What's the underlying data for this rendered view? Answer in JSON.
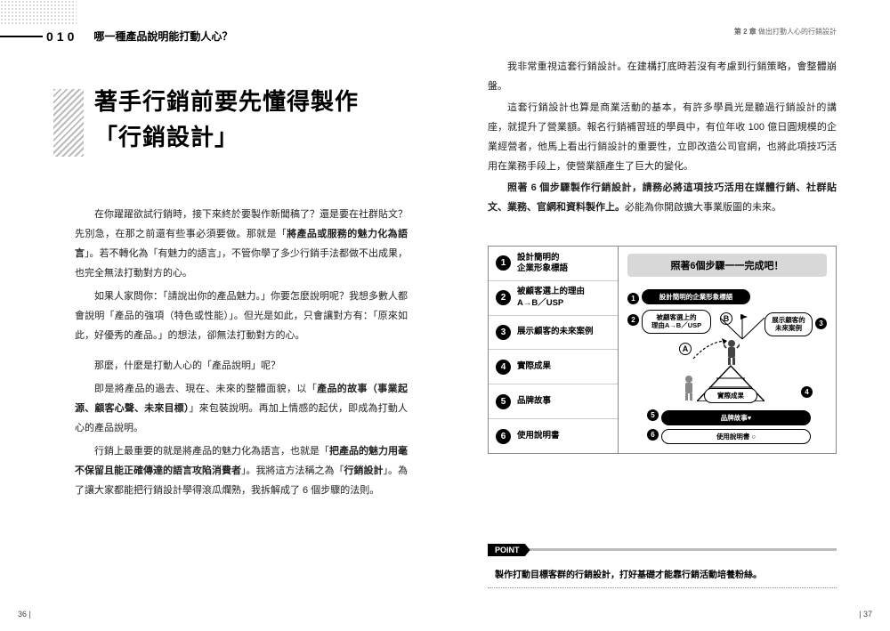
{
  "left": {
    "section_no": "010",
    "section_q": "哪一種產品說明能打動人心？",
    "title_line1": "著手行銷前要先懂得製作",
    "title_line2": "「行銷設計」",
    "p1": "在你躍躍欲試行銷時，接下來終於要製作新聞稿了？還是要在社群貼文？先別急，在那之前還有些事必須要做。那就是「<b>將產品或服務的魅力化為語言</b>」。若不轉化為「有魅力的語言」，不管你學了多少行銷手法都做不出成果，也完全無法打動對方的心。",
    "p2": "如果人家問你：「請說出你的產品魅力。」你要怎麼說明呢？我想多數人都會說明「產品的強項（特色或性能）」。但光是如此，只會讓對方有：「原來如此，好優秀的產品。」的想法，卻無法打動對方的心。",
    "p3": "那麼，什麼是打動人心的「產品說明」呢？",
    "p4": "即是將產品的過去、現在、未來的整體面貌，以「<b>產品的故事（事業起源、顧客心聲、未來目標）</b>」來包裝說明。再加上情感的起伏，即成為打動人心的產品說明。",
    "p5": "行銷上最重要的就是將產品的魅力化為語言，也就是「<b>把產品的魅力用毫不保留且能正確傳達的語言攻陷消費者</b>」。我將這方法稱之為「<b>行銷設計</b>」。為了讓大家都能把行銷設計學得滾瓜爛熟，我拆解成了 6 個步驟的法則。",
    "page_no": "36"
  },
  "right": {
    "chapter": "第 2 章",
    "chapter_title": "做出打動人心的行銷設計",
    "p1": "我非常重視這套行銷設計。在建構打底時若沒有考慮到行銷策略，會整體崩盤。",
    "p2": "這套行銷設計也算是商業活動的基本，有許多學員光是聽過行銷設計的講座，就提升了營業額。報名行銷補習班的學員中，有位年收 100 億日圓規模的企業經營者，他馬上看出行銷設計的重要性，立即改造公司官網，也將此項技巧活用在業務手段上，使營業額產生了巨大的變化。",
    "p3": "<b>照著 6 個步驟製作行銷設計，請務必將這項技巧活用在媒體行銷、社群貼文、業務、官網和資料製作上。</b>必能為你開啟擴大事業版圖的未來。",
    "steps": [
      {
        "n": "1",
        "label_l1": "設計簡明的",
        "label_l2": "企業形象標語"
      },
      {
        "n": "2",
        "label_l1": "被顧客選上的理由",
        "label_l2": "A→B／USP"
      },
      {
        "n": "3",
        "label_l1": "展示顧客的未來案例",
        "label_l2": ""
      },
      {
        "n": "4",
        "label_l1": "實際成果",
        "label_l2": ""
      },
      {
        "n": "5",
        "label_l1": "品牌故事",
        "label_l2": ""
      },
      {
        "n": "6",
        "label_l1": "使用說明書",
        "label_l2": ""
      }
    ],
    "diag_title": "照著6個步驟一一完成吧！",
    "bubble1": "設計簡明的企業形象標語",
    "bubble2_l1": "被顧客選上的",
    "bubble2_l2": "理由A→B／USP",
    "bubble3_l1": "展示顧客的",
    "bubble3_l2": "未來案例",
    "bubble4": "實際成果",
    "bubble5": "品牌故事♥",
    "bubble6": "使用說明書 ○",
    "point_label": "POINT",
    "point_text": "製作打動目標客群的行銷設計，打好基礎才能靠行銷活動培養粉絲。",
    "page_no": "37"
  },
  "colors": {
    "stripe": "#bbbbbb",
    "border": "#888888",
    "accent_bg": "#d8d8d8",
    "text": "#222222"
  }
}
